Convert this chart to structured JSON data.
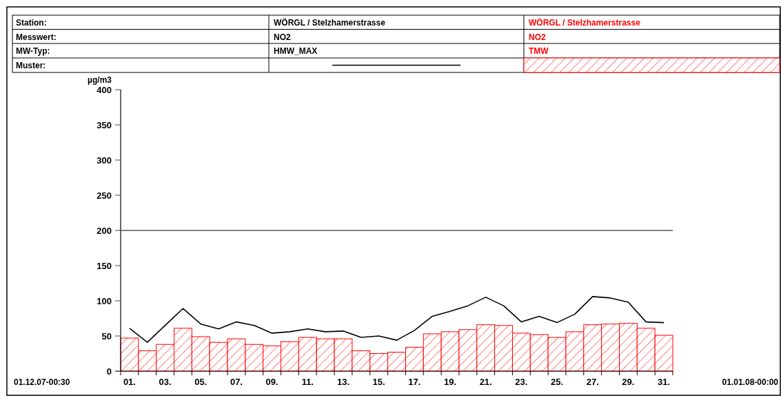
{
  "chart_data": {
    "type": "bar",
    "ylabel": "µg/m3",
    "categories": [
      "01.",
      null,
      "03.",
      null,
      "05.",
      null,
      "07.",
      null,
      "09.",
      null,
      "11.",
      null,
      "13.",
      null,
      "15.",
      null,
      "17.",
      null,
      "19.",
      null,
      "21.",
      null,
      "23.",
      null,
      "25.",
      null,
      "27.",
      null,
      "29.",
      null,
      "31."
    ],
    "series": [
      {
        "name": "HMW_MAX",
        "type": "line",
        "color": "#000000",
        "values": [
          61,
          41,
          65,
          89,
          67,
          60,
          70,
          65,
          54,
          56,
          60,
          56,
          57,
          48,
          50,
          44,
          58,
          78,
          85,
          93,
          105,
          93,
          70,
          78,
          69,
          81,
          106,
          104,
          98,
          70,
          69
        ]
      },
      {
        "name": "TMW",
        "color": "#ff0000",
        "values": [
          47,
          29,
          38,
          61,
          49,
          41,
          46,
          38,
          36,
          42,
          48,
          46,
          46,
          29,
          25,
          27,
          34,
          53,
          56,
          59,
          66,
          65,
          54,
          52,
          48,
          56,
          66,
          67,
          68,
          61,
          51
        ]
      }
    ],
    "ylim": [
      0,
      400
    ],
    "yticks": [
      0,
      50,
      100,
      150,
      200,
      250,
      300,
      350,
      400
    ],
    "ref_lines": [
      {
        "axis": "y",
        "value": 200,
        "color": "#000000"
      }
    ],
    "legend": "top",
    "grid": false,
    "annotations": [
      "Station:",
      "Messwert:",
      "MW-Typ:",
      "Muster:",
      "WÖRGL / Stelzhamerstrasse",
      "NO2",
      "01.12.07-00:30",
      "01.01.08-00:00"
    ]
  }
}
